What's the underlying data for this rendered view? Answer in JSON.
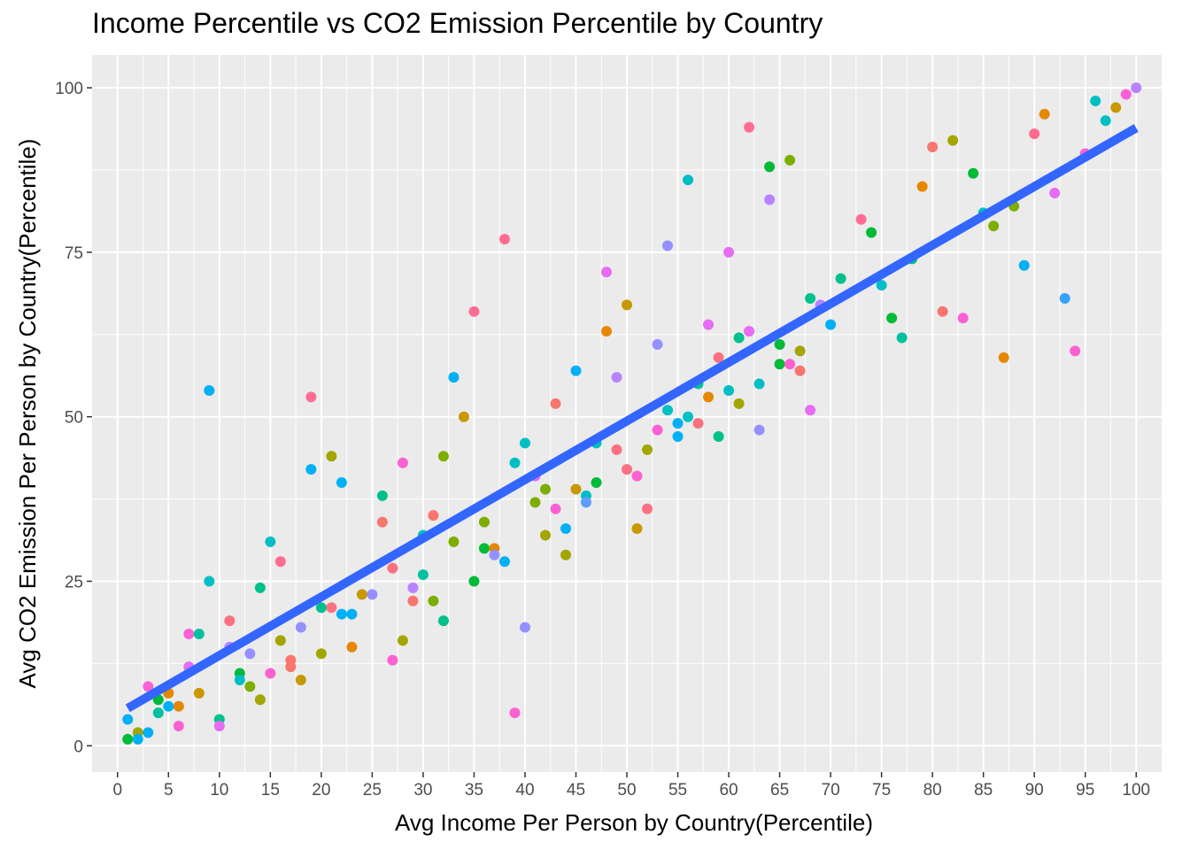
{
  "chart_data": {
    "type": "scatter",
    "title": "Income Percentile vs CO2 Emission Percentile by Country",
    "xlabel": "Avg Income Per Person by Country(Percentile)",
    "ylabel": "Avg CO2 Emission Per Person by Country(Percentile)",
    "xlim": [
      -2.5,
      102.5
    ],
    "ylim": [
      -4,
      105
    ],
    "x_ticks": [
      0,
      5,
      10,
      15,
      20,
      25,
      30,
      35,
      40,
      45,
      50,
      55,
      60,
      65,
      70,
      75,
      80,
      85,
      90,
      95,
      100
    ],
    "y_ticks": [
      0,
      25,
      50,
      75,
      100
    ],
    "grid": true,
    "legend": "none",
    "panel_background": "#ebebeb",
    "grid_color": "#ffffff",
    "trend_line": {
      "x": [
        1,
        100
      ],
      "y": [
        5.7,
        93.9
      ],
      "color": "#3366ff"
    },
    "points": [
      {
        "x": 1,
        "y": 4,
        "color": "#00b0f6"
      },
      {
        "x": 1,
        "y": 1,
        "color": "#00ba38"
      },
      {
        "x": 2,
        "y": 2,
        "color": "#a3a500"
      },
      {
        "x": 2,
        "y": 1,
        "color": "#00b0f6"
      },
      {
        "x": 3,
        "y": 9,
        "color": "#fb61d7"
      },
      {
        "x": 3,
        "y": 2,
        "color": "#00b0f6"
      },
      {
        "x": 4,
        "y": 7,
        "color": "#00ba38"
      },
      {
        "x": 4,
        "y": 5,
        "color": "#00c19f"
      },
      {
        "x": 5,
        "y": 8,
        "color": "#e58700"
      },
      {
        "x": 5,
        "y": 6,
        "color": "#00b0f6"
      },
      {
        "x": 6,
        "y": 6,
        "color": "#e58700"
      },
      {
        "x": 6,
        "y": 3,
        "color": "#fd61d1"
      },
      {
        "x": 7,
        "y": 17,
        "color": "#fb61d7"
      },
      {
        "x": 7,
        "y": 12,
        "color": "#e76bf3"
      },
      {
        "x": 8,
        "y": 17,
        "color": "#00c19f"
      },
      {
        "x": 8,
        "y": 8,
        "color": "#c99800"
      },
      {
        "x": 9,
        "y": 54,
        "color": "#00b0f6"
      },
      {
        "x": 9,
        "y": 25,
        "color": "#00bfc4"
      },
      {
        "x": 10,
        "y": 4,
        "color": "#00c08b"
      },
      {
        "x": 10,
        "y": 3,
        "color": "#e76bf3"
      },
      {
        "x": 11,
        "y": 19,
        "color": "#fc717f"
      },
      {
        "x": 11,
        "y": 15,
        "color": "#b983ff"
      },
      {
        "x": 12,
        "y": 11,
        "color": "#00ba38"
      },
      {
        "x": 12,
        "y": 10,
        "color": "#00bfc4"
      },
      {
        "x": 13,
        "y": 14,
        "color": "#9590ff"
      },
      {
        "x": 13,
        "y": 9,
        "color": "#7cae00"
      },
      {
        "x": 14,
        "y": 24,
        "color": "#00c08b"
      },
      {
        "x": 14,
        "y": 7,
        "color": "#a3a500"
      },
      {
        "x": 15,
        "y": 31,
        "color": "#00bfc4"
      },
      {
        "x": 15,
        "y": 11,
        "color": "#fd61d1"
      },
      {
        "x": 16,
        "y": 28,
        "color": "#ff6c91"
      },
      {
        "x": 16,
        "y": 16,
        "color": "#a3a500"
      },
      {
        "x": 17,
        "y": 13,
        "color": "#f8766d"
      },
      {
        "x": 17,
        "y": 12,
        "color": "#f8766d"
      },
      {
        "x": 18,
        "y": 18,
        "color": "#9590ff"
      },
      {
        "x": 18,
        "y": 10,
        "color": "#c99800"
      },
      {
        "x": 19,
        "y": 53,
        "color": "#ff6c91"
      },
      {
        "x": 19,
        "y": 42,
        "color": "#00b0f6"
      },
      {
        "x": 20,
        "y": 21,
        "color": "#00c08b"
      },
      {
        "x": 20,
        "y": 14,
        "color": "#a3a500"
      },
      {
        "x": 21,
        "y": 44,
        "color": "#a3a500"
      },
      {
        "x": 21,
        "y": 21,
        "color": "#fc717f"
      },
      {
        "x": 22,
        "y": 40,
        "color": "#00b0f6"
      },
      {
        "x": 22,
        "y": 20,
        "color": "#00b0f6"
      },
      {
        "x": 23,
        "y": 20,
        "color": "#00b0f6"
      },
      {
        "x": 23,
        "y": 15,
        "color": "#e58700"
      },
      {
        "x": 24,
        "y": 23,
        "color": "#c99800"
      },
      {
        "x": 25,
        "y": 23,
        "color": "#9590ff"
      },
      {
        "x": 26,
        "y": 38,
        "color": "#00c08b"
      },
      {
        "x": 26,
        "y": 34,
        "color": "#f8766d"
      },
      {
        "x": 27,
        "y": 27,
        "color": "#fc717f"
      },
      {
        "x": 27,
        "y": 13,
        "color": "#fd61d1"
      },
      {
        "x": 28,
        "y": 43,
        "color": "#fd61d1"
      },
      {
        "x": 28,
        "y": 16,
        "color": "#a3a500"
      },
      {
        "x": 29,
        "y": 24,
        "color": "#b983ff"
      },
      {
        "x": 29,
        "y": 22,
        "color": "#f8766d"
      },
      {
        "x": 30,
        "y": 32,
        "color": "#00bfc4"
      },
      {
        "x": 30,
        "y": 26,
        "color": "#00c19f"
      },
      {
        "x": 31,
        "y": 35,
        "color": "#f8766d"
      },
      {
        "x": 31,
        "y": 22,
        "color": "#7cae00"
      },
      {
        "x": 32,
        "y": 44,
        "color": "#7cae00"
      },
      {
        "x": 32,
        "y": 19,
        "color": "#00c08b"
      },
      {
        "x": 33,
        "y": 56,
        "color": "#00b0f6"
      },
      {
        "x": 33,
        "y": 31,
        "color": "#7cae00"
      },
      {
        "x": 34,
        "y": 50,
        "color": "#c99800"
      },
      {
        "x": 35,
        "y": 66,
        "color": "#ff6c91"
      },
      {
        "x": 35,
        "y": 25,
        "color": "#00ba38"
      },
      {
        "x": 36,
        "y": 34,
        "color": "#7cae00"
      },
      {
        "x": 36,
        "y": 30,
        "color": "#00ba38"
      },
      {
        "x": 37,
        "y": 30,
        "color": "#e58700"
      },
      {
        "x": 37,
        "y": 29,
        "color": "#9590ff"
      },
      {
        "x": 38,
        "y": 77,
        "color": "#ff6c91"
      },
      {
        "x": 38,
        "y": 28,
        "color": "#00b0f6"
      },
      {
        "x": 39,
        "y": 43,
        "color": "#00bfc4"
      },
      {
        "x": 39,
        "y": 5,
        "color": "#fd61d1"
      },
      {
        "x": 40,
        "y": 46,
        "color": "#00bfc4"
      },
      {
        "x": 40,
        "y": 18,
        "color": "#9590ff"
      },
      {
        "x": 41,
        "y": 41,
        "color": "#e76bf3"
      },
      {
        "x": 41,
        "y": 37,
        "color": "#7cae00"
      },
      {
        "x": 42,
        "y": 39,
        "color": "#7cae00"
      },
      {
        "x": 42,
        "y": 32,
        "color": "#a3a500"
      },
      {
        "x": 43,
        "y": 52,
        "color": "#f8766d"
      },
      {
        "x": 43,
        "y": 36,
        "color": "#fb61d7"
      },
      {
        "x": 44,
        "y": 33,
        "color": "#00b0f6"
      },
      {
        "x": 44,
        "y": 29,
        "color": "#a3a500"
      },
      {
        "x": 45,
        "y": 57,
        "color": "#00b0f6"
      },
      {
        "x": 45,
        "y": 39,
        "color": "#c99800"
      },
      {
        "x": 46,
        "y": 38,
        "color": "#00bfc4"
      },
      {
        "x": 46,
        "y": 37,
        "color": "#619cff"
      },
      {
        "x": 47,
        "y": 46,
        "color": "#00bfc4"
      },
      {
        "x": 47,
        "y": 40,
        "color": "#00ba38"
      },
      {
        "x": 48,
        "y": 72,
        "color": "#e76bf3"
      },
      {
        "x": 48,
        "y": 63,
        "color": "#e58700"
      },
      {
        "x": 49,
        "y": 56,
        "color": "#b983ff"
      },
      {
        "x": 49,
        "y": 45,
        "color": "#fc717f"
      },
      {
        "x": 50,
        "y": 67,
        "color": "#c99800"
      },
      {
        "x": 50,
        "y": 42,
        "color": "#fc717f"
      },
      {
        "x": 51,
        "y": 41,
        "color": "#fd61d1"
      },
      {
        "x": 51,
        "y": 33,
        "color": "#c99800"
      },
      {
        "x": 52,
        "y": 45,
        "color": "#a3a500"
      },
      {
        "x": 52,
        "y": 36,
        "color": "#fc717f"
      },
      {
        "x": 53,
        "y": 61,
        "color": "#9590ff"
      },
      {
        "x": 53,
        "y": 48,
        "color": "#fb61d7"
      },
      {
        "x": 54,
        "y": 76,
        "color": "#9590ff"
      },
      {
        "x": 54,
        "y": 51,
        "color": "#00bfc4"
      },
      {
        "x": 55,
        "y": 49,
        "color": "#00b0f6"
      },
      {
        "x": 55,
        "y": 47,
        "color": "#00b0f6"
      },
      {
        "x": 56,
        "y": 86,
        "color": "#00bfc4"
      },
      {
        "x": 56,
        "y": 50,
        "color": "#00bfc4"
      },
      {
        "x": 57,
        "y": 55,
        "color": "#00c19f"
      },
      {
        "x": 57,
        "y": 49,
        "color": "#fc717f"
      },
      {
        "x": 58,
        "y": 64,
        "color": "#e76bf3"
      },
      {
        "x": 58,
        "y": 53,
        "color": "#e58700"
      },
      {
        "x": 59,
        "y": 59,
        "color": "#fc717f"
      },
      {
        "x": 59,
        "y": 47,
        "color": "#00c08b"
      },
      {
        "x": 60,
        "y": 75,
        "color": "#e76bf3"
      },
      {
        "x": 60,
        "y": 54,
        "color": "#00bfc4"
      },
      {
        "x": 61,
        "y": 62,
        "color": "#00c08b"
      },
      {
        "x": 61,
        "y": 52,
        "color": "#a3a500"
      },
      {
        "x": 62,
        "y": 94,
        "color": "#ff6c91"
      },
      {
        "x": 62,
        "y": 63,
        "color": "#e76bf3"
      },
      {
        "x": 63,
        "y": 55,
        "color": "#00bfc4"
      },
      {
        "x": 63,
        "y": 48,
        "color": "#9590ff"
      },
      {
        "x": 64,
        "y": 88,
        "color": "#00ba38"
      },
      {
        "x": 64,
        "y": 83,
        "color": "#b983ff"
      },
      {
        "x": 65,
        "y": 61,
        "color": "#00ba38"
      },
      {
        "x": 65,
        "y": 58,
        "color": "#00ba38"
      },
      {
        "x": 66,
        "y": 89,
        "color": "#7cae00"
      },
      {
        "x": 66,
        "y": 58,
        "color": "#fd61d1"
      },
      {
        "x": 67,
        "y": 60,
        "color": "#a3a500"
      },
      {
        "x": 67,
        "y": 57,
        "color": "#f8766d"
      },
      {
        "x": 68,
        "y": 68,
        "color": "#00c08b"
      },
      {
        "x": 68,
        "y": 51,
        "color": "#e76bf3"
      },
      {
        "x": 69,
        "y": 67,
        "color": "#b983ff"
      },
      {
        "x": 70,
        "y": 64,
        "color": "#00b0f6"
      },
      {
        "x": 71,
        "y": 71,
        "color": "#00c08b"
      },
      {
        "x": 73,
        "y": 80,
        "color": "#ff6c91"
      },
      {
        "x": 74,
        "y": 78,
        "color": "#00ba38"
      },
      {
        "x": 75,
        "y": 70,
        "color": "#00bfc4"
      },
      {
        "x": 76,
        "y": 65,
        "color": "#00ba38"
      },
      {
        "x": 77,
        "y": 62,
        "color": "#00c19f"
      },
      {
        "x": 78,
        "y": 74,
        "color": "#00c08b"
      },
      {
        "x": 79,
        "y": 85,
        "color": "#e58700"
      },
      {
        "x": 80,
        "y": 91,
        "color": "#f8766d"
      },
      {
        "x": 81,
        "y": 66,
        "color": "#f8766d"
      },
      {
        "x": 82,
        "y": 92,
        "color": "#a3a500"
      },
      {
        "x": 83,
        "y": 65,
        "color": "#fb61d7"
      },
      {
        "x": 84,
        "y": 87,
        "color": "#00ba38"
      },
      {
        "x": 85,
        "y": 81,
        "color": "#00bfc4"
      },
      {
        "x": 86,
        "y": 79,
        "color": "#7cae00"
      },
      {
        "x": 87,
        "y": 59,
        "color": "#e58700"
      },
      {
        "x": 88,
        "y": 82,
        "color": "#7cae00"
      },
      {
        "x": 89,
        "y": 73,
        "color": "#00b0f6"
      },
      {
        "x": 90,
        "y": 93,
        "color": "#ff6c91"
      },
      {
        "x": 91,
        "y": 96,
        "color": "#e58700"
      },
      {
        "x": 92,
        "y": 84,
        "color": "#e76bf3"
      },
      {
        "x": 93,
        "y": 68,
        "color": "#35a2ff"
      },
      {
        "x": 94,
        "y": 60,
        "color": "#fd61d1"
      },
      {
        "x": 95,
        "y": 90,
        "color": "#fd61d1"
      },
      {
        "x": 96,
        "y": 98,
        "color": "#00bfc4"
      },
      {
        "x": 97,
        "y": 95,
        "color": "#00bfc4"
      },
      {
        "x": 98,
        "y": 97,
        "color": "#c99800"
      },
      {
        "x": 99,
        "y": 99,
        "color": "#fb61d7"
      },
      {
        "x": 100,
        "y": 100,
        "color": "#b983ff"
      }
    ]
  }
}
